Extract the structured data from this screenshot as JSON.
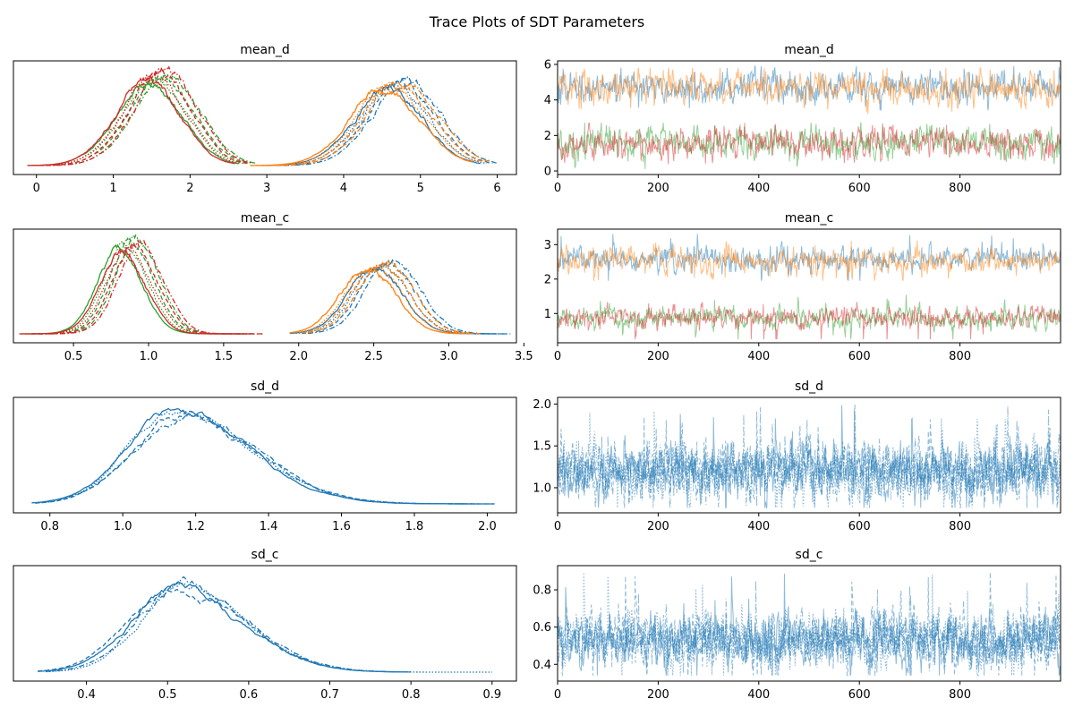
{
  "figure_title": "Trace Plots of SDT Parameters",
  "colors": {
    "blue": "#1f77b4",
    "orange": "#ff7f0e",
    "green": "#2ca02c",
    "red": "#d62728"
  },
  "chain_line_styles": [
    "solid",
    "dotted",
    "dashed",
    "dashdot"
  ],
  "draws_per_chain": 1000,
  "chart_data": [
    {
      "id": "kde-mean_d",
      "type": "line",
      "subtype": "kde",
      "title": "mean_d",
      "xlim": [
        -0.3,
        6.25
      ],
      "xticks": [
        0,
        1,
        2,
        3,
        4,
        5,
        6
      ],
      "yticks_visible": false,
      "series": [
        {
          "color": "blue",
          "component": "high",
          "mean": 4.7,
          "sd": 0.45,
          "range": [
            3.1,
            5.9
          ]
        },
        {
          "color": "orange",
          "component": "high",
          "mean": 4.65,
          "sd": 0.46,
          "range": [
            2.9,
            5.8
          ]
        },
        {
          "color": "green",
          "component": "low",
          "mean": 1.58,
          "sd": 0.43,
          "range": [
            0.0,
            2.75
          ]
        },
        {
          "color": "red",
          "component": "low",
          "mean": 1.56,
          "sd": 0.42,
          "range": [
            0.0,
            2.7
          ]
        }
      ]
    },
    {
      "id": "trace-mean_d",
      "type": "line",
      "subtype": "trace",
      "title": "mean_d",
      "xlim": [
        0,
        1000
      ],
      "ylim": [
        -0.2,
        6.2
      ],
      "xticks": [
        0,
        200,
        400,
        600,
        800
      ],
      "yticks": [
        0,
        2,
        4,
        6
      ],
      "series": [
        {
          "color": "blue",
          "mean": 4.7,
          "sd": 0.45,
          "min": 3.2,
          "max": 5.9
        },
        {
          "color": "orange",
          "mean": 4.65,
          "sd": 0.46,
          "min": 2.9,
          "max": 5.8
        },
        {
          "color": "green",
          "mean": 1.58,
          "sd": 0.43,
          "min": 0.1,
          "max": 2.75
        },
        {
          "color": "red",
          "mean": 1.56,
          "sd": 0.42,
          "min": 0.0,
          "max": 2.7
        }
      ]
    },
    {
      "id": "kde-mean_c",
      "type": "line",
      "subtype": "kde",
      "title": "mean_c",
      "xlim": [
        0.1,
        3.45
      ],
      "xticks": [
        0.5,
        1.0,
        1.5,
        2.0,
        2.5,
        3.0,
        3.5
      ],
      "yticks_visible": false,
      "series": [
        {
          "color": "blue",
          "component": "high",
          "mean": 2.57,
          "sd": 0.18,
          "range": [
            2.0,
            3.35
          ]
        },
        {
          "color": "orange",
          "component": "high",
          "mean": 2.52,
          "sd": 0.18,
          "range": [
            2.0,
            3.15
          ]
        },
        {
          "color": "green",
          "component": "low",
          "mean": 0.87,
          "sd": 0.15,
          "range": [
            0.2,
            1.7
          ]
        },
        {
          "color": "red",
          "component": "low",
          "mean": 0.89,
          "sd": 0.15,
          "range": [
            0.2,
            1.7
          ]
        }
      ]
    },
    {
      "id": "trace-mean_c",
      "type": "line",
      "subtype": "trace",
      "title": "mean_c",
      "xlim": [
        0,
        1000
      ],
      "ylim": [
        0.15,
        3.45
      ],
      "xticks": [
        0,
        200,
        400,
        600,
        800
      ],
      "yticks": [
        1,
        2,
        3
      ],
      "series": [
        {
          "color": "blue",
          "mean": 2.57,
          "sd": 0.18,
          "min": 1.95,
          "max": 3.35
        },
        {
          "color": "orange",
          "mean": 2.52,
          "sd": 0.18,
          "min": 1.95,
          "max": 3.15
        },
        {
          "color": "green",
          "mean": 0.87,
          "sd": 0.15,
          "min": 0.25,
          "max": 1.55
        },
        {
          "color": "red",
          "mean": 0.89,
          "sd": 0.15,
          "min": 0.25,
          "max": 1.85
        }
      ]
    },
    {
      "id": "kde-sd_d",
      "type": "line",
      "subtype": "kde",
      "title": "sd_d",
      "xlim": [
        0.7,
        2.08
      ],
      "xticks": [
        0.8,
        1.0,
        1.2,
        1.4,
        1.6,
        1.8,
        2.0
      ],
      "yticks_visible": false,
      "series": [
        {
          "color": "blue",
          "chain": 1,
          "mode": 1.14,
          "sd_left": 0.13,
          "sd_right": 0.2,
          "range": [
            0.75,
            2.02
          ]
        },
        {
          "color": "blue",
          "chain": 2,
          "mode": 1.13,
          "sd_left": 0.12,
          "sd_right": 0.21,
          "range": [
            0.76,
            1.98
          ]
        },
        {
          "color": "blue",
          "chain": 3,
          "mode": 1.16,
          "sd_left": 0.13,
          "sd_right": 0.2,
          "range": [
            0.76,
            2.02
          ]
        },
        {
          "color": "blue",
          "chain": 4,
          "mode": 1.17,
          "sd_left": 0.14,
          "sd_right": 0.19,
          "range": [
            0.76,
            1.95
          ]
        }
      ]
    },
    {
      "id": "trace-sd_d",
      "type": "line",
      "subtype": "trace",
      "title": "sd_d",
      "xlim": [
        0,
        1000
      ],
      "ylim": [
        0.7,
        2.08
      ],
      "xticks": [
        0,
        200,
        400,
        600,
        800
      ],
      "yticks": [
        1.0,
        1.5,
        2.0
      ],
      "series": [
        {
          "color": "blue",
          "chain": 1,
          "mean": 1.2,
          "sd": 0.17,
          "min": 0.76,
          "max": 2.0
        },
        {
          "color": "blue",
          "chain": 2,
          "mean": 1.2,
          "sd": 0.17,
          "min": 0.76,
          "max": 2.0
        },
        {
          "color": "blue",
          "chain": 3,
          "mean": 1.2,
          "sd": 0.17,
          "min": 0.76,
          "max": 2.0
        },
        {
          "color": "blue",
          "chain": 4,
          "mean": 1.2,
          "sd": 0.17,
          "min": 0.76,
          "max": 2.0
        }
      ]
    },
    {
      "id": "kde-sd_c",
      "type": "line",
      "subtype": "kde",
      "title": "sd_c",
      "xlim": [
        0.31,
        0.93
      ],
      "xticks": [
        0.4,
        0.5,
        0.6,
        0.7,
        0.8,
        0.9
      ],
      "yticks_visible": false,
      "series": [
        {
          "color": "blue",
          "chain": 1,
          "mode": 0.51,
          "sd_left": 0.055,
          "sd_right": 0.08,
          "range": [
            0.34,
            0.8
          ]
        },
        {
          "color": "blue",
          "chain": 2,
          "mode": 0.52,
          "sd_left": 0.052,
          "sd_right": 0.075,
          "range": [
            0.35,
            0.9
          ]
        },
        {
          "color": "blue",
          "chain": 3,
          "mode": 0.51,
          "sd_left": 0.058,
          "sd_right": 0.08,
          "range": [
            0.34,
            0.78
          ]
        },
        {
          "color": "blue",
          "chain": 4,
          "mode": 0.52,
          "sd_left": 0.055,
          "sd_right": 0.078,
          "range": [
            0.35,
            0.8
          ]
        }
      ]
    },
    {
      "id": "trace-sd_c",
      "type": "line",
      "subtype": "trace",
      "title": "sd_c",
      "xlim": [
        0,
        1000
      ],
      "ylim": [
        0.31,
        0.93
      ],
      "xticks": [
        0,
        200,
        400,
        600,
        800
      ],
      "yticks": [
        0.4,
        0.6,
        0.8
      ],
      "series": [
        {
          "color": "blue",
          "chain": 1,
          "mean": 0.53,
          "sd": 0.07,
          "min": 0.34,
          "max": 0.9
        },
        {
          "color": "blue",
          "chain": 2,
          "mean": 0.53,
          "sd": 0.07,
          "min": 0.34,
          "max": 0.9
        },
        {
          "color": "blue",
          "chain": 3,
          "mean": 0.53,
          "sd": 0.07,
          "min": 0.34,
          "max": 0.9
        },
        {
          "color": "blue",
          "chain": 4,
          "mean": 0.53,
          "sd": 0.07,
          "min": 0.34,
          "max": 0.9
        }
      ]
    }
  ]
}
